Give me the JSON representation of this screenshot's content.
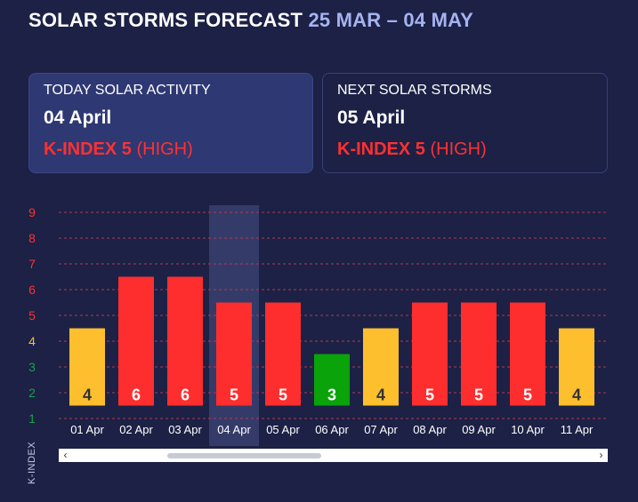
{
  "header": {
    "title": "SOLAR STORMS FORECAST",
    "range": "25 MAR – 04 MAY"
  },
  "today": {
    "label": "TODAY SOLAR ACTIVITY",
    "date": "04 April",
    "kindex_label": "K-INDEX 5",
    "level": "(HIGH)"
  },
  "next": {
    "label": "NEXT SOLAR STORMS",
    "date": "05 April",
    "kindex_label": "K-INDEX 5",
    "level": "(HIGH)"
  },
  "chart_data": {
    "type": "bar",
    "ylabel": "K-INDEX",
    "ylim": [
      1,
      9
    ],
    "yticks": [
      1,
      2,
      3,
      4,
      5,
      6,
      7,
      8,
      9
    ],
    "categories": [
      "01 Apr",
      "02 Apr",
      "03 Apr",
      "04 Apr",
      "05 Apr",
      "06 Apr",
      "07 Apr",
      "08 Apr",
      "09 Apr",
      "10 Apr",
      "11 Apr"
    ],
    "values": [
      4,
      6,
      6,
      5,
      5,
      3,
      4,
      5,
      5,
      5,
      4
    ],
    "highlighted_category": "04 Apr",
    "colors": {
      "high": "#ff2e2e",
      "moderate": "#fdbf2d",
      "low": "#0aa30a",
      "grid": "#b23a4a",
      "highlight": "#3a4070"
    },
    "ytick_colors": {
      "1": "#16a34a",
      "2": "#16a34a",
      "3": "#16a34a",
      "4": "#fdbf2d",
      "5": "#ff3131",
      "6": "#ff3131",
      "7": "#ff3131",
      "8": "#ff3131",
      "9": "#ff3131"
    },
    "label_colors": {
      "4": "#333333"
    }
  }
}
